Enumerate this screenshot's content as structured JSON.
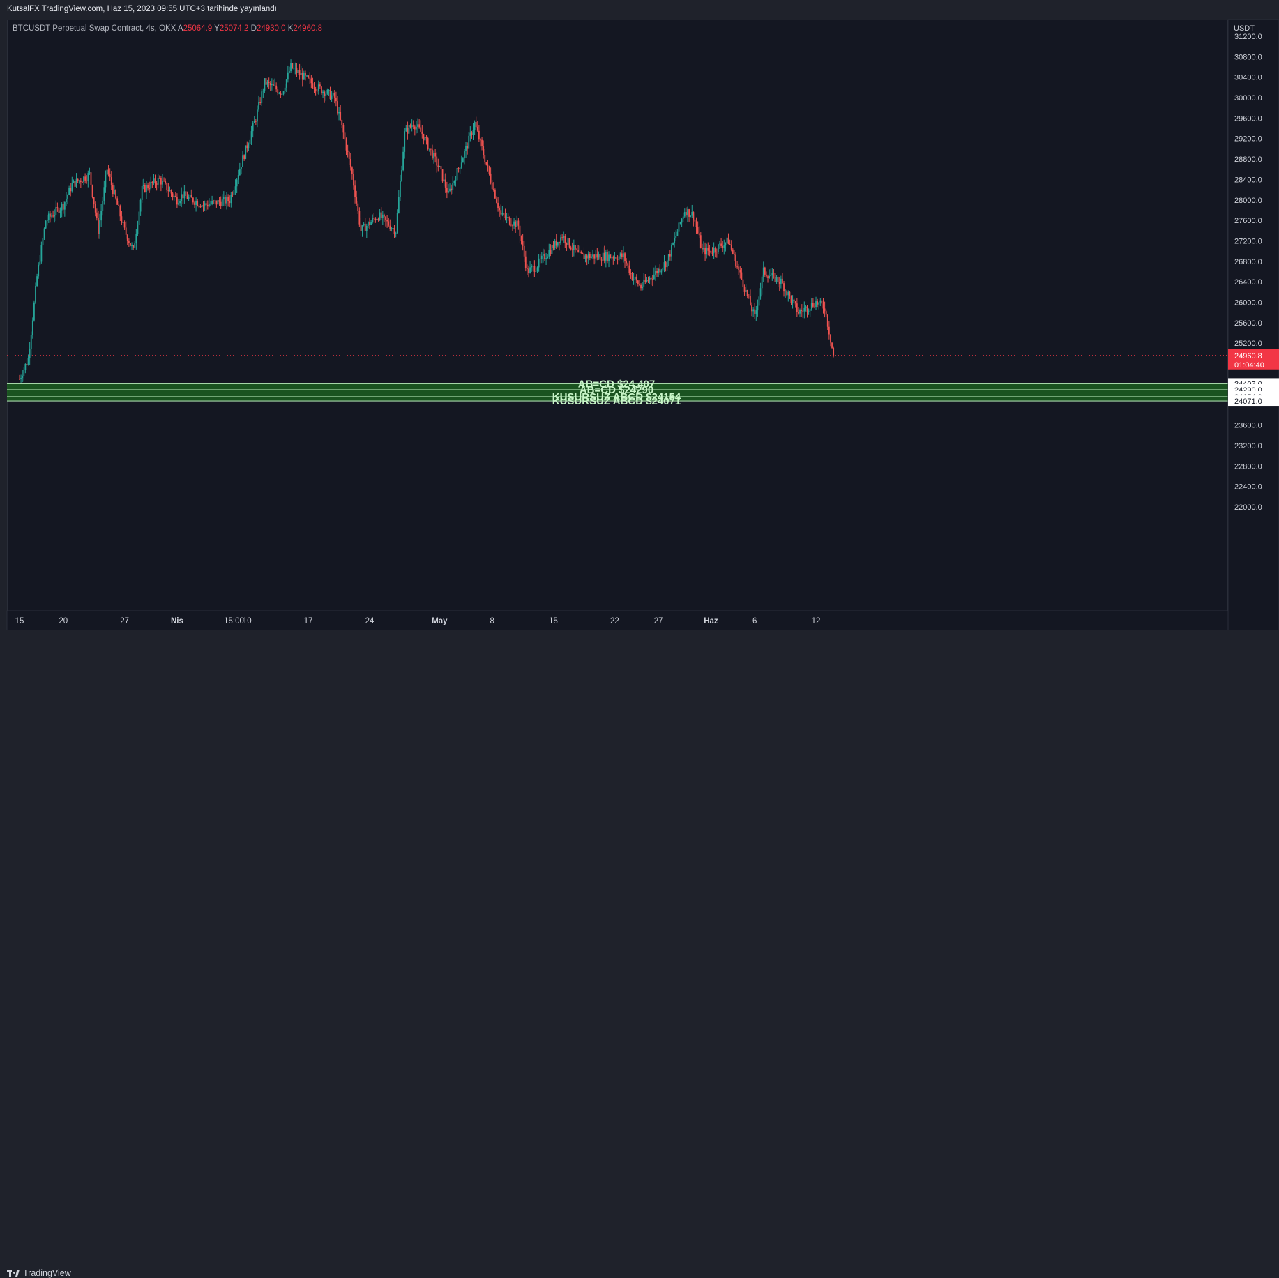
{
  "header": {
    "published": "KutsalFX TradingView.com, Haz 15, 2023 09:55 UTC+3 tarihinde yayınlandı"
  },
  "legend": {
    "symbol": "BTCUSDT Perpetual Swap Contract, 4s, OKX",
    "open_label": "A",
    "open": "25064.9",
    "high_label": "Y",
    "high": "25074.2",
    "low_label": "D",
    "low": "24930.0",
    "close_label": "K",
    "close": "24960.8"
  },
  "footer": {
    "brand": "TradingView"
  },
  "chart_data": {
    "type": "candlestick",
    "title": "BTCUSDT Perpetual Swap Contract, 4s, OKX",
    "currency": "USDT",
    "y_range": [
      21800,
      31350
    ],
    "y_ticks": [
      31200,
      30800,
      30400,
      30000,
      29600,
      29200,
      28800,
      28400,
      28000,
      27600,
      27200,
      26800,
      26400,
      26000,
      25600,
      25200,
      23600,
      23200,
      22800,
      22400,
      22000
    ],
    "x_labels": [
      "15",
      "20",
      "27",
      "Nis",
      "15:00",
      "10",
      "17",
      "24",
      "May",
      "8",
      "15",
      "22",
      "27",
      "Haz",
      "6",
      "12"
    ],
    "price_path": [
      [
        "15",
        24500
      ],
      [
        "16",
        24900
      ],
      [
        "17",
        26500
      ],
      [
        "18",
        27600
      ],
      [
        "20",
        27900
      ],
      [
        "21",
        28300
      ],
      [
        "23",
        28500
      ],
      [
        "24",
        27400
      ],
      [
        "25",
        28600
      ],
      [
        "27",
        27400
      ],
      [
        "28",
        27000
      ],
      [
        "29",
        28200
      ],
      [
        "31",
        28400
      ],
      [
        "Nis",
        28000
      ],
      [
        "15:00",
        28100
      ],
      [
        "4",
        27900
      ],
      [
        "7",
        28000
      ],
      [
        "10",
        29600
      ],
      [
        "11",
        30300
      ],
      [
        "13",
        30100
      ],
      [
        "14",
        30600
      ],
      [
        "17",
        30200
      ],
      [
        "19",
        30000
      ],
      [
        "20",
        29300
      ],
      [
        "21",
        28500
      ],
      [
        "22",
        27400
      ],
      [
        "24",
        27700
      ],
      [
        "26",
        27400
      ],
      [
        "27",
        29300
      ],
      [
        "28",
        29500
      ],
      [
        "29",
        29300
      ],
      [
        "May",
        28600
      ],
      [
        "2",
        28100
      ],
      [
        "4",
        29000
      ],
      [
        "5",
        29500
      ],
      [
        "6",
        28900
      ],
      [
        "8",
        27700
      ],
      [
        "10",
        27500
      ],
      [
        "11",
        26600
      ],
      [
        "12",
        26700
      ],
      [
        "15",
        27300
      ],
      [
        "17",
        26900
      ],
      [
        "19",
        26900
      ],
      [
        "22",
        26900
      ],
      [
        "23",
        26500
      ],
      [
        "24",
        26300
      ],
      [
        "27",
        26800
      ],
      [
        "29",
        27800
      ],
      [
        "30",
        27700
      ],
      [
        "31",
        27000
      ],
      [
        "Haz",
        27000
      ],
      [
        "3",
        27200
      ],
      [
        "5",
        26200
      ],
      [
        "6",
        25700
      ],
      [
        "7",
        26600
      ],
      [
        "9",
        26400
      ],
      [
        "11",
        25800
      ],
      [
        "13",
        26000
      ],
      [
        "14",
        25900
      ],
      [
        "15",
        24960.8
      ]
    ],
    "last_price": "24960.8",
    "countdown": "01:04:40",
    "levels": [
      {
        "price": 24407,
        "price_label": "24407.0",
        "text": "AB=CD  $24,407"
      },
      {
        "price": 24290,
        "price_label": "24290.0",
        "text": "AB=CD  $24290"
      },
      {
        "price": 24154,
        "price_label": "24154.0",
        "text": "KUSURSUZ ABCD $24154"
      },
      {
        "price": 24071,
        "price_label": "24071.0",
        "text": "KUSURSUZ ABCD $24071"
      }
    ],
    "colors": {
      "background": "#141722",
      "up": "#26a69a",
      "down": "#ef5350",
      "level_fill": "#1b5e20",
      "level_line": "#a5d6a7",
      "last_price": "#f23645"
    },
    "grid": false,
    "legend_position": "top-left"
  }
}
